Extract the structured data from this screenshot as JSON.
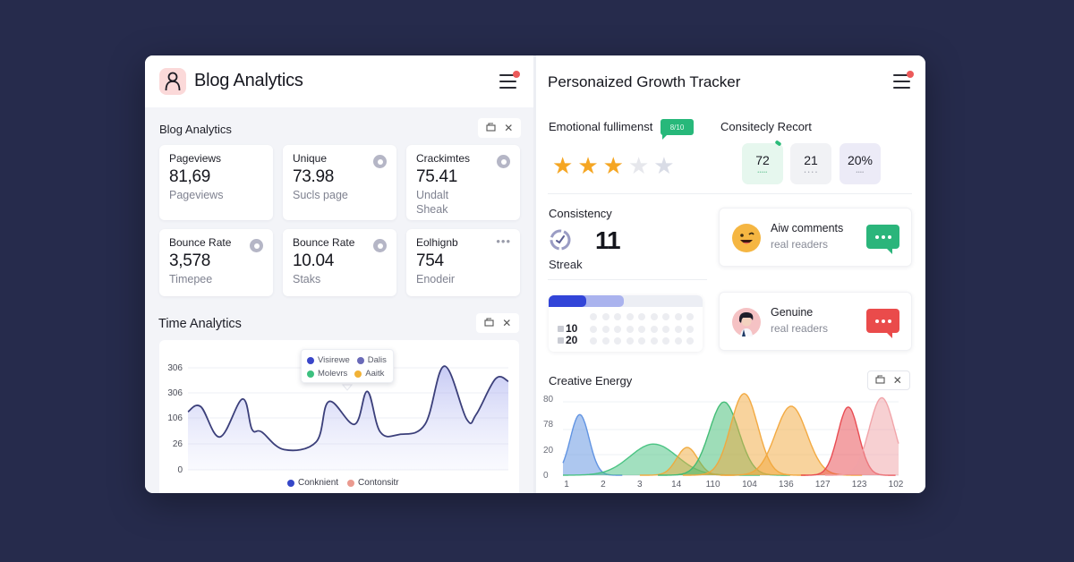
{
  "colors": {
    "background": "#262b4c",
    "accent_blue": "#3245d8",
    "accent_green": "#27b87a",
    "accent_red": "#e94848",
    "star_filled": "#f5a623",
    "star_empty": "#d8dbe4",
    "notification_dot": "#ec5a5a"
  },
  "left_panel": {
    "app_title": "Blog Analytics",
    "avatar_icon": "user-icon",
    "menu_icon": "hamburger-menu-icon",
    "stats_section": {
      "title": "Blog Analytics",
      "controls": [
        "restore-icon",
        "close-icon"
      ],
      "cards": [
        {
          "label": "Pageviews",
          "value": "81,69",
          "sub": "Pageviews",
          "icon": "none"
        },
        {
          "label": "Unique",
          "value": "73.98",
          "sub": "Sucls page",
          "icon": "search-icon"
        },
        {
          "label": "Crackimtes",
          "value": "75.41",
          "sub": "Undalt",
          "sub2": "Sheak",
          "icon": "circle-icon"
        },
        {
          "label": "Bounce Rate",
          "value": "3,578",
          "sub": "Timepee",
          "icon": "circle-icon"
        },
        {
          "label": "Bounce Rate",
          "value": "10.04",
          "sub": "Staks",
          "icon": "search-icon"
        },
        {
          "label": "Eolhignb",
          "value": "754",
          "sub": "Enodeir",
          "icon": "more-icon"
        }
      ]
    },
    "time_section": {
      "title": "Time Analytics",
      "controls": [
        "restore-icon",
        "close-icon"
      ]
    }
  },
  "right_panel": {
    "title": "Personaized Growth Tracker",
    "menu_icon": "hamburger-menu-icon",
    "emotional": {
      "title": "Emotional fullimenst",
      "badge": "8/10",
      "rating": 3,
      "max_rating": 5
    },
    "record": {
      "title": "Consitecly Recort",
      "boxes": [
        {
          "value": "72",
          "bg": "#e6f7ee",
          "tiny": "•••••"
        },
        {
          "value": "21",
          "bg": "#f1f2f5",
          "tiny": "• • • •"
        },
        {
          "value": "20%",
          "bg": "#ecebf7",
          "tiny": "••••"
        }
      ]
    },
    "consistency": {
      "title": "Consistency",
      "value": "11",
      "sub": "Streak"
    },
    "comments": [
      {
        "title": "Aiw comments",
        "sub": "real readers",
        "bubble_color": "#2bb57b",
        "avatar": "winking-emoji-icon"
      },
      {
        "title": "Genuine",
        "sub": "real readers",
        "bubble_color": "#ea4b4b",
        "avatar": "person-avatar-icon"
      }
    ],
    "progress": {
      "labels": [
        "10",
        "20"
      ],
      "primary_pct": 24,
      "secondary_pct": 49
    },
    "creative_section": {
      "title": "Creative Energy",
      "controls": [
        "restore-icon",
        "close-icon"
      ]
    }
  },
  "chart_data": [
    {
      "type": "area",
      "title": "Time Analytics",
      "ytick_labels": [
        "0",
        "26",
        "106",
        "306",
        "306"
      ],
      "ylim": [
        0,
        4
      ],
      "grid": true,
      "tooltip_legend": [
        {
          "name": "Visirewe",
          "color": "#3a46c9"
        },
        {
          "name": "Dalis",
          "color": "#6a6ab8"
        },
        {
          "name": "Molevrs",
          "color": "#3cc07f"
        },
        {
          "name": "Aaitk",
          "color": "#f1b237"
        }
      ],
      "legend": [
        {
          "name": "Conknient",
          "color": "#3547c8"
        },
        {
          "name": "Contonsitr",
          "color": "#ea9a8f"
        }
      ],
      "legend_position": "bottom",
      "series": [
        {
          "name": "Conknient",
          "color": "#3b3f7a",
          "x": [
            0,
            0.04,
            0.1,
            0.17,
            0.2,
            0.23,
            0.3,
            0.4,
            0.44,
            0.52,
            0.56,
            0.6,
            0.66,
            0.74,
            0.8,
            0.87,
            0.9,
            0.96,
            1.0
          ],
          "values": [
            2.3,
            2.5,
            1.3,
            2.8,
            1.6,
            1.5,
            0.8,
            1.1,
            2.7,
            1.8,
            3.1,
            1.5,
            1.4,
            1.8,
            4.1,
            2.0,
            2.2,
            3.6,
            3.5
          ]
        }
      ]
    },
    {
      "type": "area",
      "title": "Creative Energy",
      "categories": [
        "1",
        "2",
        "3",
        "14",
        "110",
        "104",
        "136",
        "127",
        "123",
        "102"
      ],
      "ytick_labels": [
        "0",
        "20",
        "78",
        "80"
      ],
      "ylim": [
        0,
        100
      ],
      "grid": true,
      "series": [
        {
          "name": "blue",
          "color": "#5b8fe0",
          "peak_x": 0.05,
          "peak": 72,
          "width": 0.018
        },
        {
          "name": "green-low",
          "color": "#46c27f",
          "peak_x": 0.27,
          "peak": 37,
          "width": 0.045
        },
        {
          "name": "orange-low",
          "color": "#f0a93a",
          "peak_x": 0.37,
          "peak": 33,
          "width": 0.02
        },
        {
          "name": "green-high",
          "color": "#3dbb72",
          "peak_x": 0.48,
          "peak": 87,
          "width": 0.028
        },
        {
          "name": "orange-high",
          "color": "#f2a73b",
          "peak_x": 0.54,
          "peak": 97,
          "width": 0.026
        },
        {
          "name": "orange-mid",
          "color": "#f2a73b",
          "peak_x": 0.68,
          "peak": 82,
          "width": 0.03
        },
        {
          "name": "red",
          "color": "#e8464c",
          "peak_x": 0.85,
          "peak": 81,
          "width": 0.02
        },
        {
          "name": "pink",
          "color": "#f0a1a6",
          "peak_x": 0.95,
          "peak": 92,
          "width": 0.024
        }
      ]
    }
  ]
}
